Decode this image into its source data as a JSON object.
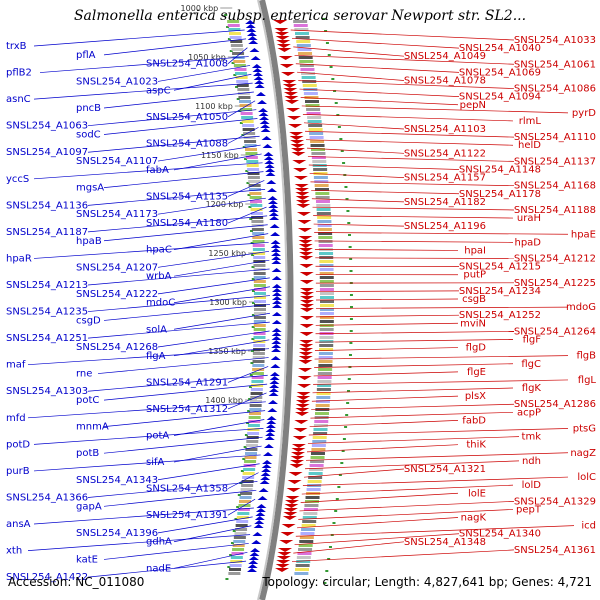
{
  "title": "Salmonella enterica subsp. enterica serovar Newport str. SL2...",
  "footer": {
    "accession": "Accession: NC_011080",
    "summary": "Topology: circular; Length: 4,827,641 bp; Genes: 4,721"
  },
  "colors": {
    "forward": "#0000cc",
    "reverse": "#cc0000",
    "backbone": "#808080",
    "tick": "#339933"
  },
  "ticks": [
    "1000 kbp",
    "1050 kbp",
    "1100 kbp",
    "1150 kbp",
    "1200 kbp",
    "1250 kbp",
    "1300 kbp",
    "1350 kbp",
    "1400 kbp"
  ],
  "forward_genes": [
    "trxB",
    "pflA",
    "SNSL254_A1008",
    "pflB2",
    "SNSL254_A1023",
    "aspC",
    "asnC",
    "pncB",
    "SNSL254_A1050",
    "SNSL254_A1063",
    "sodC",
    "SNSL254_A1088",
    "SNSL254_A1097",
    "SNSL254_A1107",
    "fabA",
    "yccS",
    "mgsA",
    "SNSL254_A1135",
    "SNSL254_A1136",
    "SNSL254_A1173",
    "SNSL254_A1180",
    "SNSL254_A1187",
    "hpaB",
    "hpaC",
    "hpaR",
    "SNSL254_A1207",
    "wrbA",
    "SNSL254_A1213",
    "SNSL254_A1222",
    "mdoC",
    "SNSL254_A1235",
    "csgD",
    "solA",
    "SNSL254_A1251",
    "SNSL254_A1268",
    "flgA",
    "maf",
    "rne",
    "SNSL254_A1291",
    "SNSL254_A1303",
    "potC",
    "SNSL254_A1312",
    "mfd",
    "mnmA",
    "potA",
    "potD",
    "potB",
    "sifA",
    "purB",
    "SNSL254_A1343",
    "SNSL254_A1358",
    "SNSL254_A1366",
    "gapA",
    "SNSL254_A1391",
    "ansA",
    "SNSL254_A1396",
    "gdhA",
    "xth",
    "katE",
    "nadE",
    "SNSL254_A1422"
  ],
  "reverse_genes": [
    "SNSL254_A1033",
    "SNSL254_A1040",
    "SNSL254_A1049",
    "SNSL254_A1061",
    "SNSL254_A1069",
    "SNSL254_A1078",
    "SNSL254_A1086",
    "SNSL254_A1094",
    "pepN",
    "pyrD",
    "rlmL",
    "SNSL254_A1103",
    "SNSL254_A1110",
    "helD",
    "SNSL254_A1122",
    "SNSL254_A1137",
    "SNSL254_A1148",
    "SNSL254_A1157",
    "SNSL254_A1168",
    "SNSL254_A1178",
    "SNSL254_A1182",
    "SNSL254_A1188",
    "uraH",
    "SNSL254_A1196",
    "hpaE",
    "hpaD",
    "hpaI",
    "SNSL254_A1212",
    "SNSL254_A1215",
    "putP",
    "SNSL254_A1225",
    "SNSL254_A1234",
    "csgB",
    "mdoG",
    "SNSL254_A1252",
    "mviN",
    "SNSL254_A1264",
    "flgF",
    "flgD",
    "flgB",
    "flgC",
    "flgE",
    "flgL",
    "flgK",
    "plsX",
    "SNSL254_A1286",
    "acpP",
    "fabD",
    "ptsG",
    "tmk",
    "thiK",
    "nagZ",
    "ndh",
    "SNSL254_A1321",
    "lolC",
    "lolD",
    "lolE",
    "SNSL254_A1329",
    "pepT",
    "nagK",
    "icd",
    "SNSL254_A1340",
    "SNSL254_A1348",
    "SNSL254_A1361"
  ]
}
